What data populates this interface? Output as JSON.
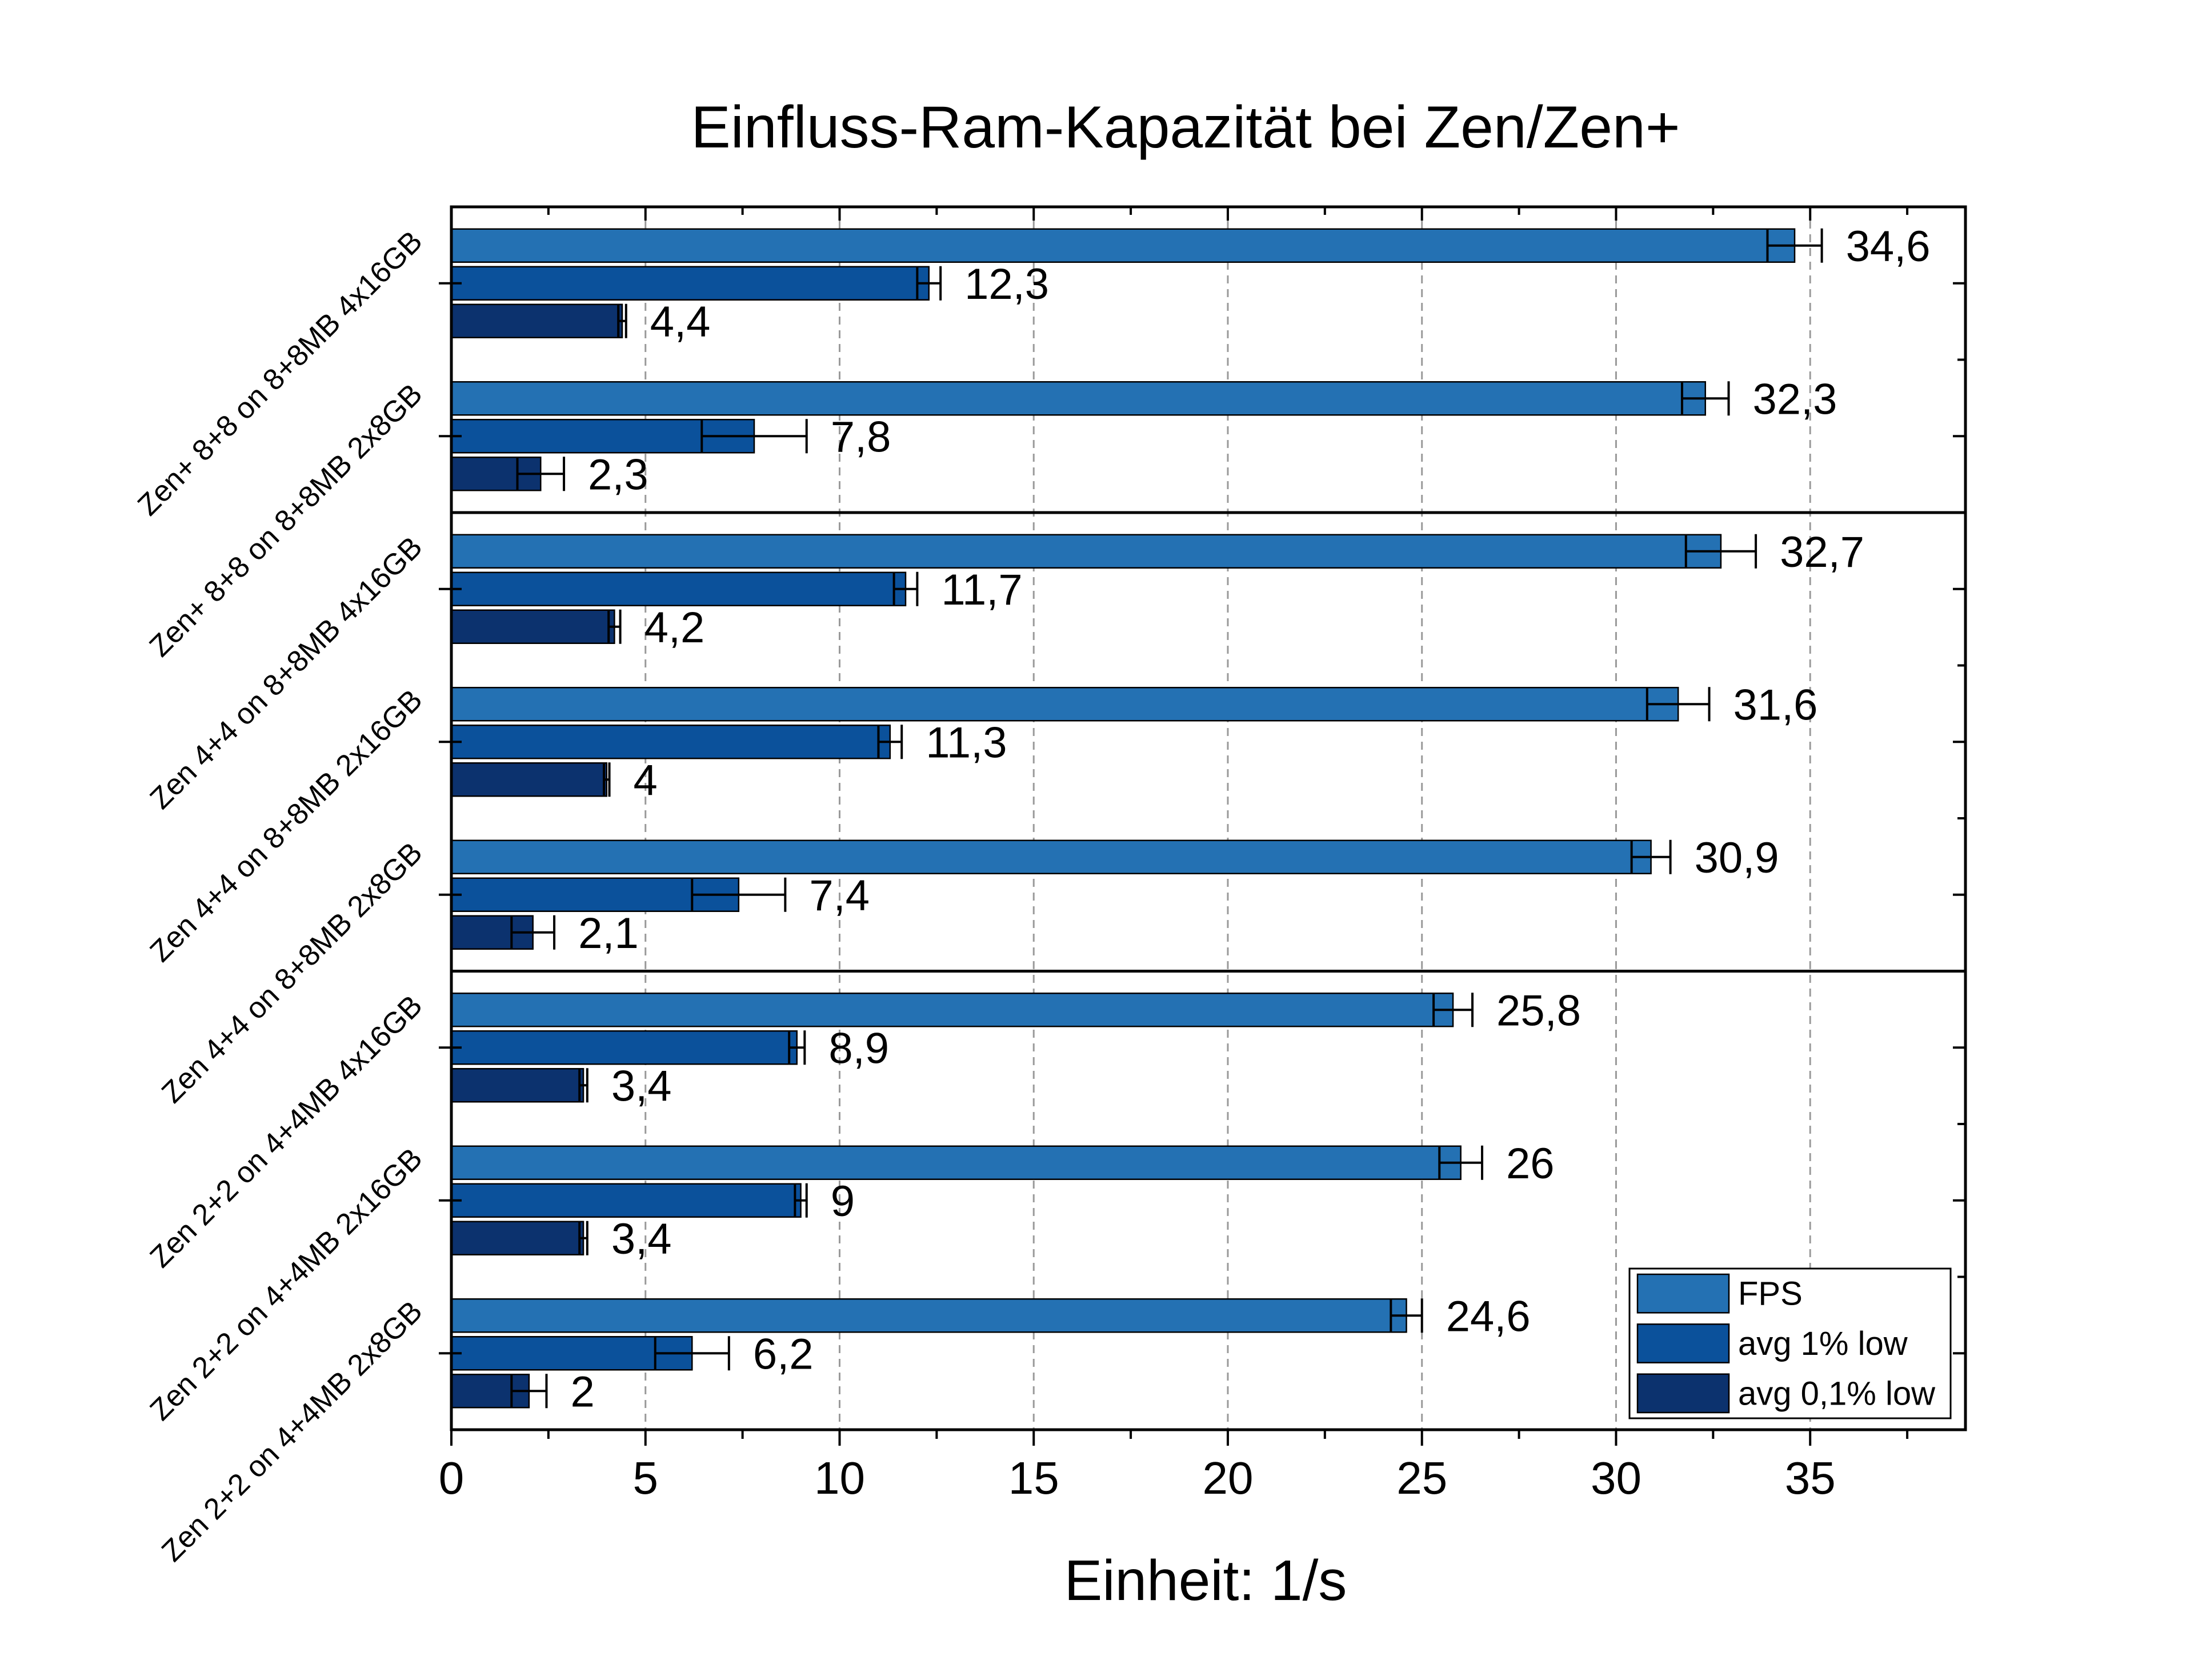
{
  "chart_data": {
    "type": "bar",
    "orientation": "horizontal",
    "title": "Einfluss-Ram-Kapazität bei Zen/Zen+",
    "xlabel": "Einheit: 1/s",
    "ylabel": "",
    "xlim": [
      0,
      39
    ],
    "xticks": [
      0,
      5,
      10,
      15,
      20,
      25,
      30,
      35
    ],
    "grid": "vertical dashed",
    "legend_position": "bottom-right",
    "categories": [
      "Zen+ 8+8 on 8+8MB 4x16GB",
      "Zen+ 8+8 on 8+8MB 2x8GB",
      "Zen 4+4 on 8+8MB 4x16GB",
      "Zen 4+4 on 8+8MB 2x16GB",
      "Zen 4+4 on 8+8MB 2x8GB",
      "Zen 2+2 on 4+4MB 4x16GB",
      "Zen 2+2 on 4+4MB 2x16GB",
      "Zen 2+2 on 4+4MB 2x8GB"
    ],
    "group_separators_after": [
      1,
      4
    ],
    "series": [
      {
        "name": "FPS",
        "color": "#2471B3",
        "values": [
          34.6,
          32.3,
          32.7,
          31.6,
          30.9,
          25.8,
          26,
          24.6
        ],
        "errors": [
          0.7,
          0.6,
          0.9,
          0.8,
          0.5,
          0.5,
          0.55,
          0.4
        ],
        "labels": [
          "34,6",
          "32,3",
          "32,7",
          "31,6",
          "30,9",
          "25,8",
          "26",
          "24,6"
        ]
      },
      {
        "name": "avg 1% low",
        "color": "#0B519B",
        "values": [
          12.3,
          7.8,
          11.7,
          11.3,
          7.4,
          8.9,
          9,
          6.2
        ],
        "errors": [
          0.3,
          1.35,
          0.3,
          0.3,
          1.2,
          0.2,
          0.15,
          0.95
        ],
        "labels": [
          "12,3",
          "7,8",
          "11,7",
          "11,3",
          "7,4",
          "8,9",
          "9",
          "6,2"
        ]
      },
      {
        "name": "avg 0,1% low",
        "color": "#0C326E",
        "values": [
          4.4,
          2.3,
          4.2,
          4,
          2.1,
          3.4,
          3.4,
          2
        ],
        "errors": [
          0.1,
          0.6,
          0.15,
          0.07,
          0.55,
          0.1,
          0.1,
          0.45
        ],
        "labels": [
          "4,4",
          "2,3",
          "4,2",
          "4",
          "2,1",
          "3,4",
          "3,4",
          "2"
        ]
      }
    ]
  }
}
